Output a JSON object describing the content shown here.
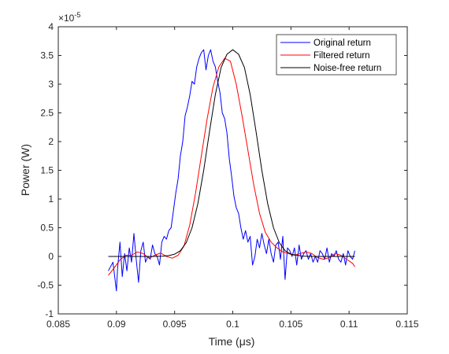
{
  "chart_data": {
    "type": "line",
    "xlabel": "Time (μs)",
    "ylabel": "Power (W)",
    "y_exponent_label": "×10",
    "y_exponent_power": "-5",
    "xlim": [
      0.085,
      0.115
    ],
    "ylim": [
      -1,
      4
    ],
    "x_ticks": [
      0.085,
      0.09,
      0.095,
      0.1,
      0.105,
      0.11,
      0.115
    ],
    "x_tick_labels": [
      "0.085",
      "0.09",
      "0.095",
      "0.1",
      "0.105",
      "0.11",
      "0.115"
    ],
    "y_ticks": [
      -1,
      -0.5,
      0,
      0.5,
      1,
      1.5,
      2,
      2.5,
      3,
      3.5,
      4
    ],
    "y_tick_labels": [
      "-1",
      "-0.5",
      "0",
      "0.5",
      "1",
      "1.5",
      "2",
      "2.5",
      "3",
      "3.5",
      "4"
    ],
    "grid": false,
    "legend_position": "top-right",
    "series": [
      {
        "name": "Original return",
        "color": "#0000ff",
        "x": [
          0.0893,
          0.0897,
          0.09,
          0.0901,
          0.0903,
          0.0905,
          0.0907,
          0.0909,
          0.0911,
          0.0913,
          0.0915,
          0.0917,
          0.0919,
          0.0921,
          0.0923,
          0.0925,
          0.0927,
          0.0929,
          0.0931,
          0.0933,
          0.0935,
          0.0937,
          0.0939,
          0.0941,
          0.0943,
          0.0945,
          0.0947,
          0.0949,
          0.0951,
          0.0953,
          0.0955,
          0.0957,
          0.0959,
          0.0961,
          0.0963,
          0.0965,
          0.0967,
          0.0969,
          0.0971,
          0.0973,
          0.0975,
          0.0977,
          0.0979,
          0.0981,
          0.0983,
          0.0985,
          0.0987,
          0.0989,
          0.0991,
          0.0993,
          0.0995,
          0.0997,
          0.0999,
          0.1001,
          0.1003,
          0.1005,
          0.1007,
          0.1009,
          0.1011,
          0.1013,
          0.1015,
          0.1017,
          0.1019,
          0.1021,
          0.1023,
          0.1025,
          0.1027,
          0.1029,
          0.1031,
          0.1033,
          0.1035,
          0.1037,
          0.1039,
          0.1041,
          0.1043,
          0.1045,
          0.1047,
          0.1049,
          0.1051,
          0.1053,
          0.1055,
          0.1057,
          0.1059,
          0.1061,
          0.1063,
          0.1065,
          0.1067,
          0.1069,
          0.1071,
          0.1073,
          0.1075,
          0.1077,
          0.1079,
          0.1081,
          0.1083,
          0.1085,
          0.1087,
          0.1089,
          0.1091,
          0.1093,
          0.1095,
          0.1097,
          0.1099,
          0.1101,
          0.1103,
          0.1105
        ],
        "y": [
          -0.25,
          -0.1,
          -0.6,
          -0.2,
          0.25,
          -0.35,
          0.05,
          -0.25,
          0.15,
          -0.1,
          0.4,
          -0.05,
          -0.45,
          0.1,
          0.25,
          -0.1,
          0.0,
          -0.05,
          0.2,
          0.05,
          0.0,
          -0.15,
          0.25,
          0.35,
          0.3,
          0.45,
          0.5,
          0.8,
          1.1,
          1.35,
          1.75,
          2.0,
          2.45,
          2.6,
          2.8,
          3.05,
          3.0,
          3.3,
          3.45,
          3.55,
          3.6,
          3.25,
          3.5,
          3.6,
          3.4,
          3.3,
          3.05,
          2.85,
          2.5,
          2.4,
          2.15,
          1.7,
          1.4,
          1.05,
          0.85,
          0.75,
          0.5,
          0.3,
          0.45,
          0.25,
          0.35,
          -0.15,
          0.0,
          0.3,
          0.15,
          0.4,
          0.2,
          0.05,
          0.3,
          0.05,
          -0.1,
          0.2,
          0.25,
          -0.05,
          0.35,
          -0.4,
          0.15,
          0.1,
          0.0,
          0.15,
          -0.15,
          0.2,
          -0.05,
          0.05,
          0.1,
          -0.05,
          0.05,
          -0.1,
          0.0,
          -0.1,
          0.1,
          0.05,
          -0.05,
          0.15,
          -0.1,
          0.05,
          0.0,
          0.1,
          -0.05,
          -0.1,
          0.05,
          -0.15,
          0.1,
          0.0,
          -0.05,
          0.1
        ]
      },
      {
        "name": "Filtered return",
        "color": "#ff0000",
        "x": [
          0.0893,
          0.0898,
          0.0903,
          0.0908,
          0.0913,
          0.0918,
          0.0923,
          0.0928,
          0.0933,
          0.0938,
          0.0943,
          0.0948,
          0.0953,
          0.0958,
          0.0963,
          0.0968,
          0.0973,
          0.0978,
          0.0983,
          0.0988,
          0.0993,
          0.0998,
          0.1003,
          0.1008,
          0.1013,
          0.1018,
          0.1023,
          0.1028,
          0.1033,
          0.1038,
          0.1043,
          0.1048,
          0.1053,
          0.1058,
          0.1063,
          0.1068,
          0.1073,
          0.1078,
          0.1083,
          0.1088,
          0.1093,
          0.1098,
          0.1103,
          0.1105
        ],
        "y": [
          -0.33,
          -0.2,
          -0.06,
          0.02,
          0.02,
          0.08,
          0.05,
          -0.03,
          0.02,
          0.06,
          0.0,
          -0.03,
          0.02,
          0.18,
          0.55,
          1.1,
          1.75,
          2.4,
          2.95,
          3.3,
          3.45,
          3.4,
          3.0,
          2.45,
          1.85,
          1.25,
          0.75,
          0.42,
          0.25,
          0.15,
          0.08,
          0.05,
          0.02,
          0.05,
          0.08,
          0.05,
          -0.02,
          -0.05,
          -0.02,
          0.05,
          0.02,
          -0.05,
          -0.12,
          -0.18
        ]
      },
      {
        "name": "Noise-free return",
        "color": "#000000",
        "x": [
          0.0893,
          0.09,
          0.091,
          0.092,
          0.093,
          0.094,
          0.0945,
          0.095,
          0.0955,
          0.096,
          0.0965,
          0.097,
          0.0975,
          0.098,
          0.0985,
          0.099,
          0.0995,
          0.1,
          0.1005,
          0.101,
          0.1015,
          0.102,
          0.1025,
          0.103,
          0.1035,
          0.104,
          0.1045,
          0.105,
          0.106,
          0.107,
          0.108,
          0.109,
          0.11,
          0.1105
        ],
        "y": [
          0.0,
          0.0,
          0.0,
          0.0,
          0.0,
          0.005,
          0.015,
          0.04,
          0.1,
          0.24,
          0.5,
          0.92,
          1.5,
          2.18,
          2.82,
          3.29,
          3.52,
          3.6,
          3.52,
          3.29,
          2.82,
          2.18,
          1.5,
          0.92,
          0.5,
          0.24,
          0.1,
          0.04,
          0.005,
          0.0,
          0.0,
          0.0,
          0.0,
          0.0
        ]
      }
    ]
  }
}
